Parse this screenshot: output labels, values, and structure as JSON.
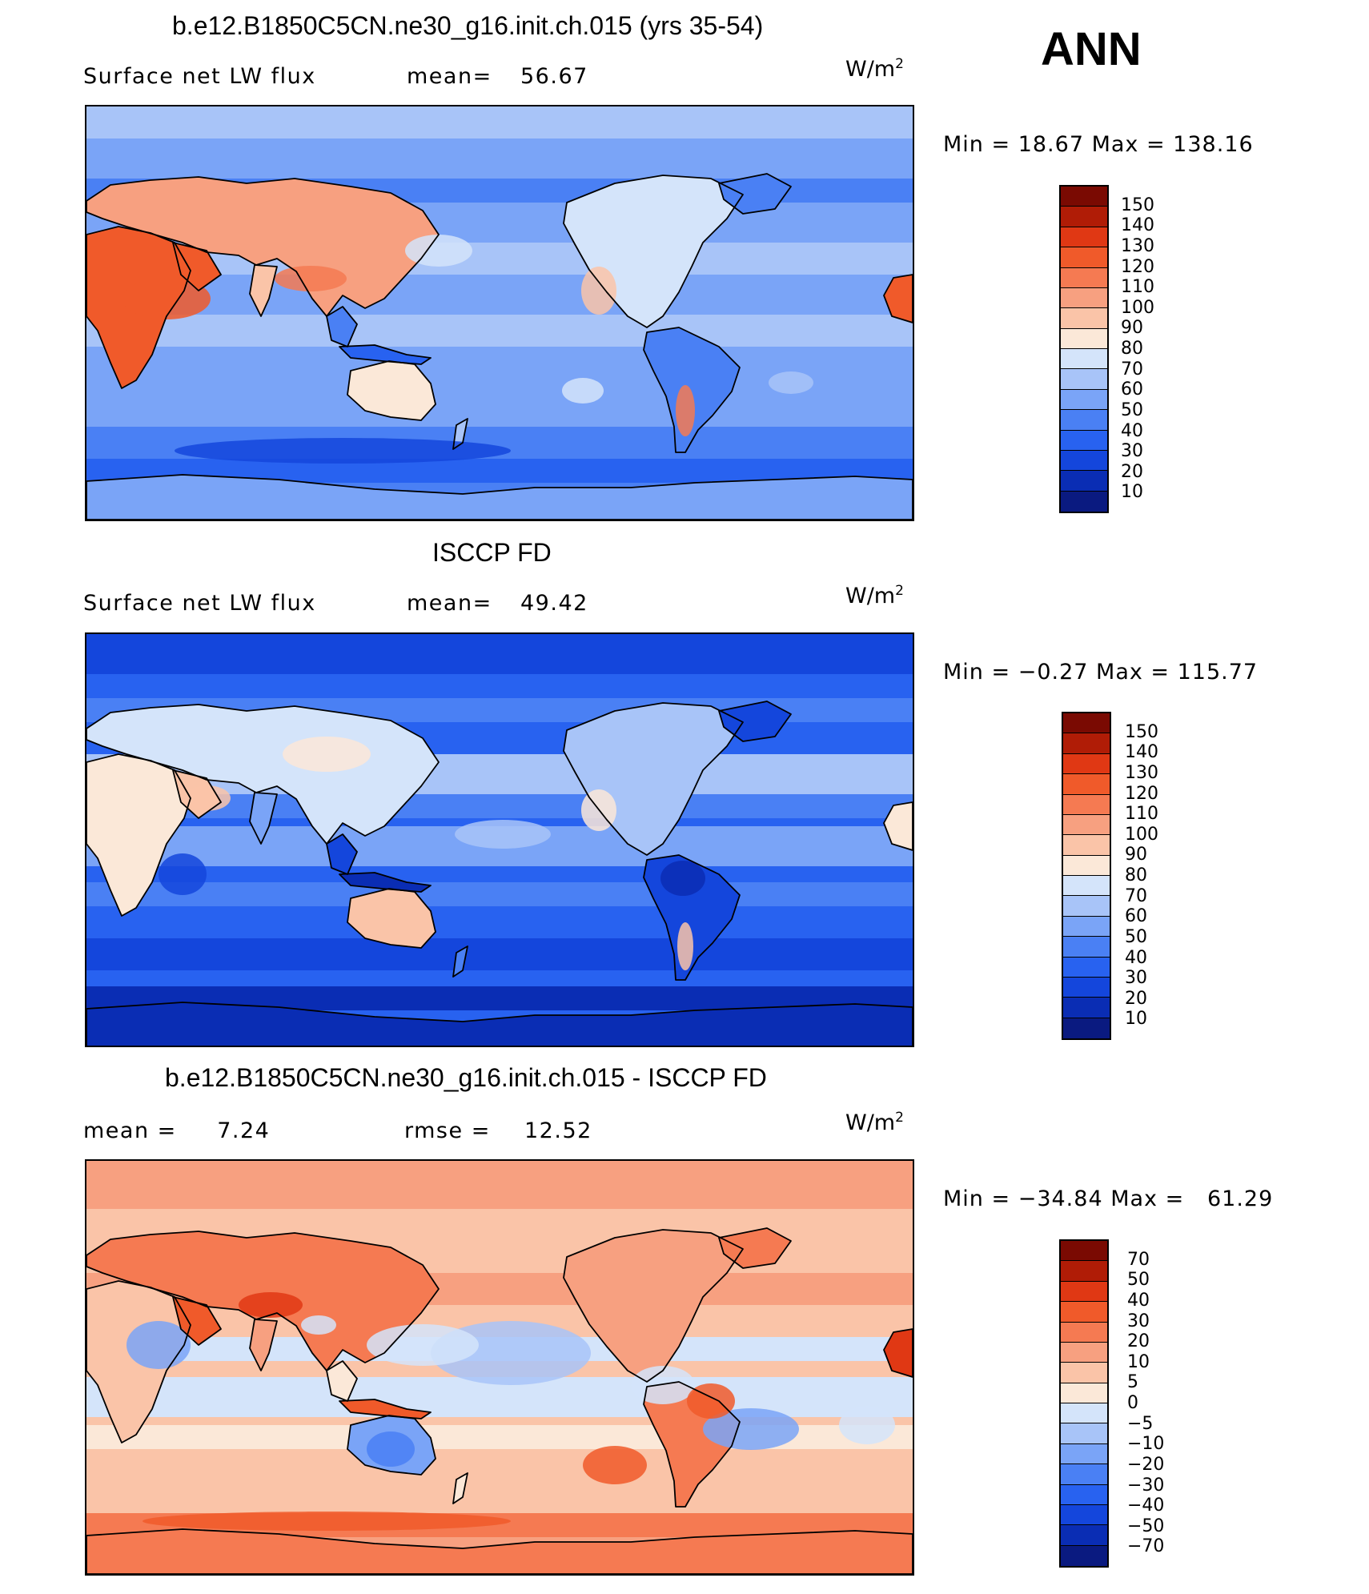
{
  "season": "ANN",
  "colors": {
    "scale": [
      "#0a1a80",
      "#0a2db4",
      "#1446dc",
      "#2862f0",
      "#4a80f4",
      "#7aa4f7",
      "#a8c4f8",
      "#d4e4fa",
      "#fbe8d8",
      "#fac4a8",
      "#f7a080",
      "#f57a52",
      "#f05a2a",
      "#e03814",
      "#b01c06",
      "#7a0a02"
    ]
  },
  "panels": [
    {
      "id": "model",
      "title": "b.e12.B1850C5CN.ne30_g16.init.ch.015 (yrs 35-54)",
      "left_label": "Surface net LW flux",
      "stat_label": "mean=",
      "stat_value": "56.67",
      "unit_base": "W/m",
      "unit_exp": "2",
      "minmax": "Min =   18.67 Max = 138.16",
      "colorbar_labels": [
        "150",
        "140",
        "130",
        "120",
        "110",
        "100",
        "90",
        "80",
        "70",
        "60",
        "50",
        "40",
        "30",
        "20",
        "10"
      ],
      "map_style": "absolute_model"
    },
    {
      "id": "obs",
      "title": "ISCCP FD",
      "left_label": "Surface net LW flux",
      "stat_label": "mean=",
      "stat_value": "49.42",
      "unit_base": "W/m",
      "unit_exp": "2",
      "minmax": "Min =   −0.27 Max = 115.77",
      "colorbar_labels": [
        "150",
        "140",
        "130",
        "120",
        "110",
        "100",
        "90",
        "80",
        "70",
        "60",
        "50",
        "40",
        "30",
        "20",
        "10"
      ],
      "map_style": "absolute_obs"
    },
    {
      "id": "diff",
      "title": "b.e12.B1850C5CN.ne30_g16.init.ch.015 - ISCCP FD",
      "left_label": "mean =     7.24",
      "stat_label": "rmse =",
      "stat_value": "12.52",
      "unit_base": "W/m",
      "unit_exp": "2",
      "minmax": "Min = −34.84 Max =   61.29",
      "colorbar_labels": [
        "70",
        "50",
        "40",
        "30",
        "20",
        "10",
        "5",
        "0",
        "−5",
        "−10",
        "−20",
        "−30",
        "−40",
        "−50",
        "−70"
      ],
      "map_style": "difference"
    }
  ]
}
